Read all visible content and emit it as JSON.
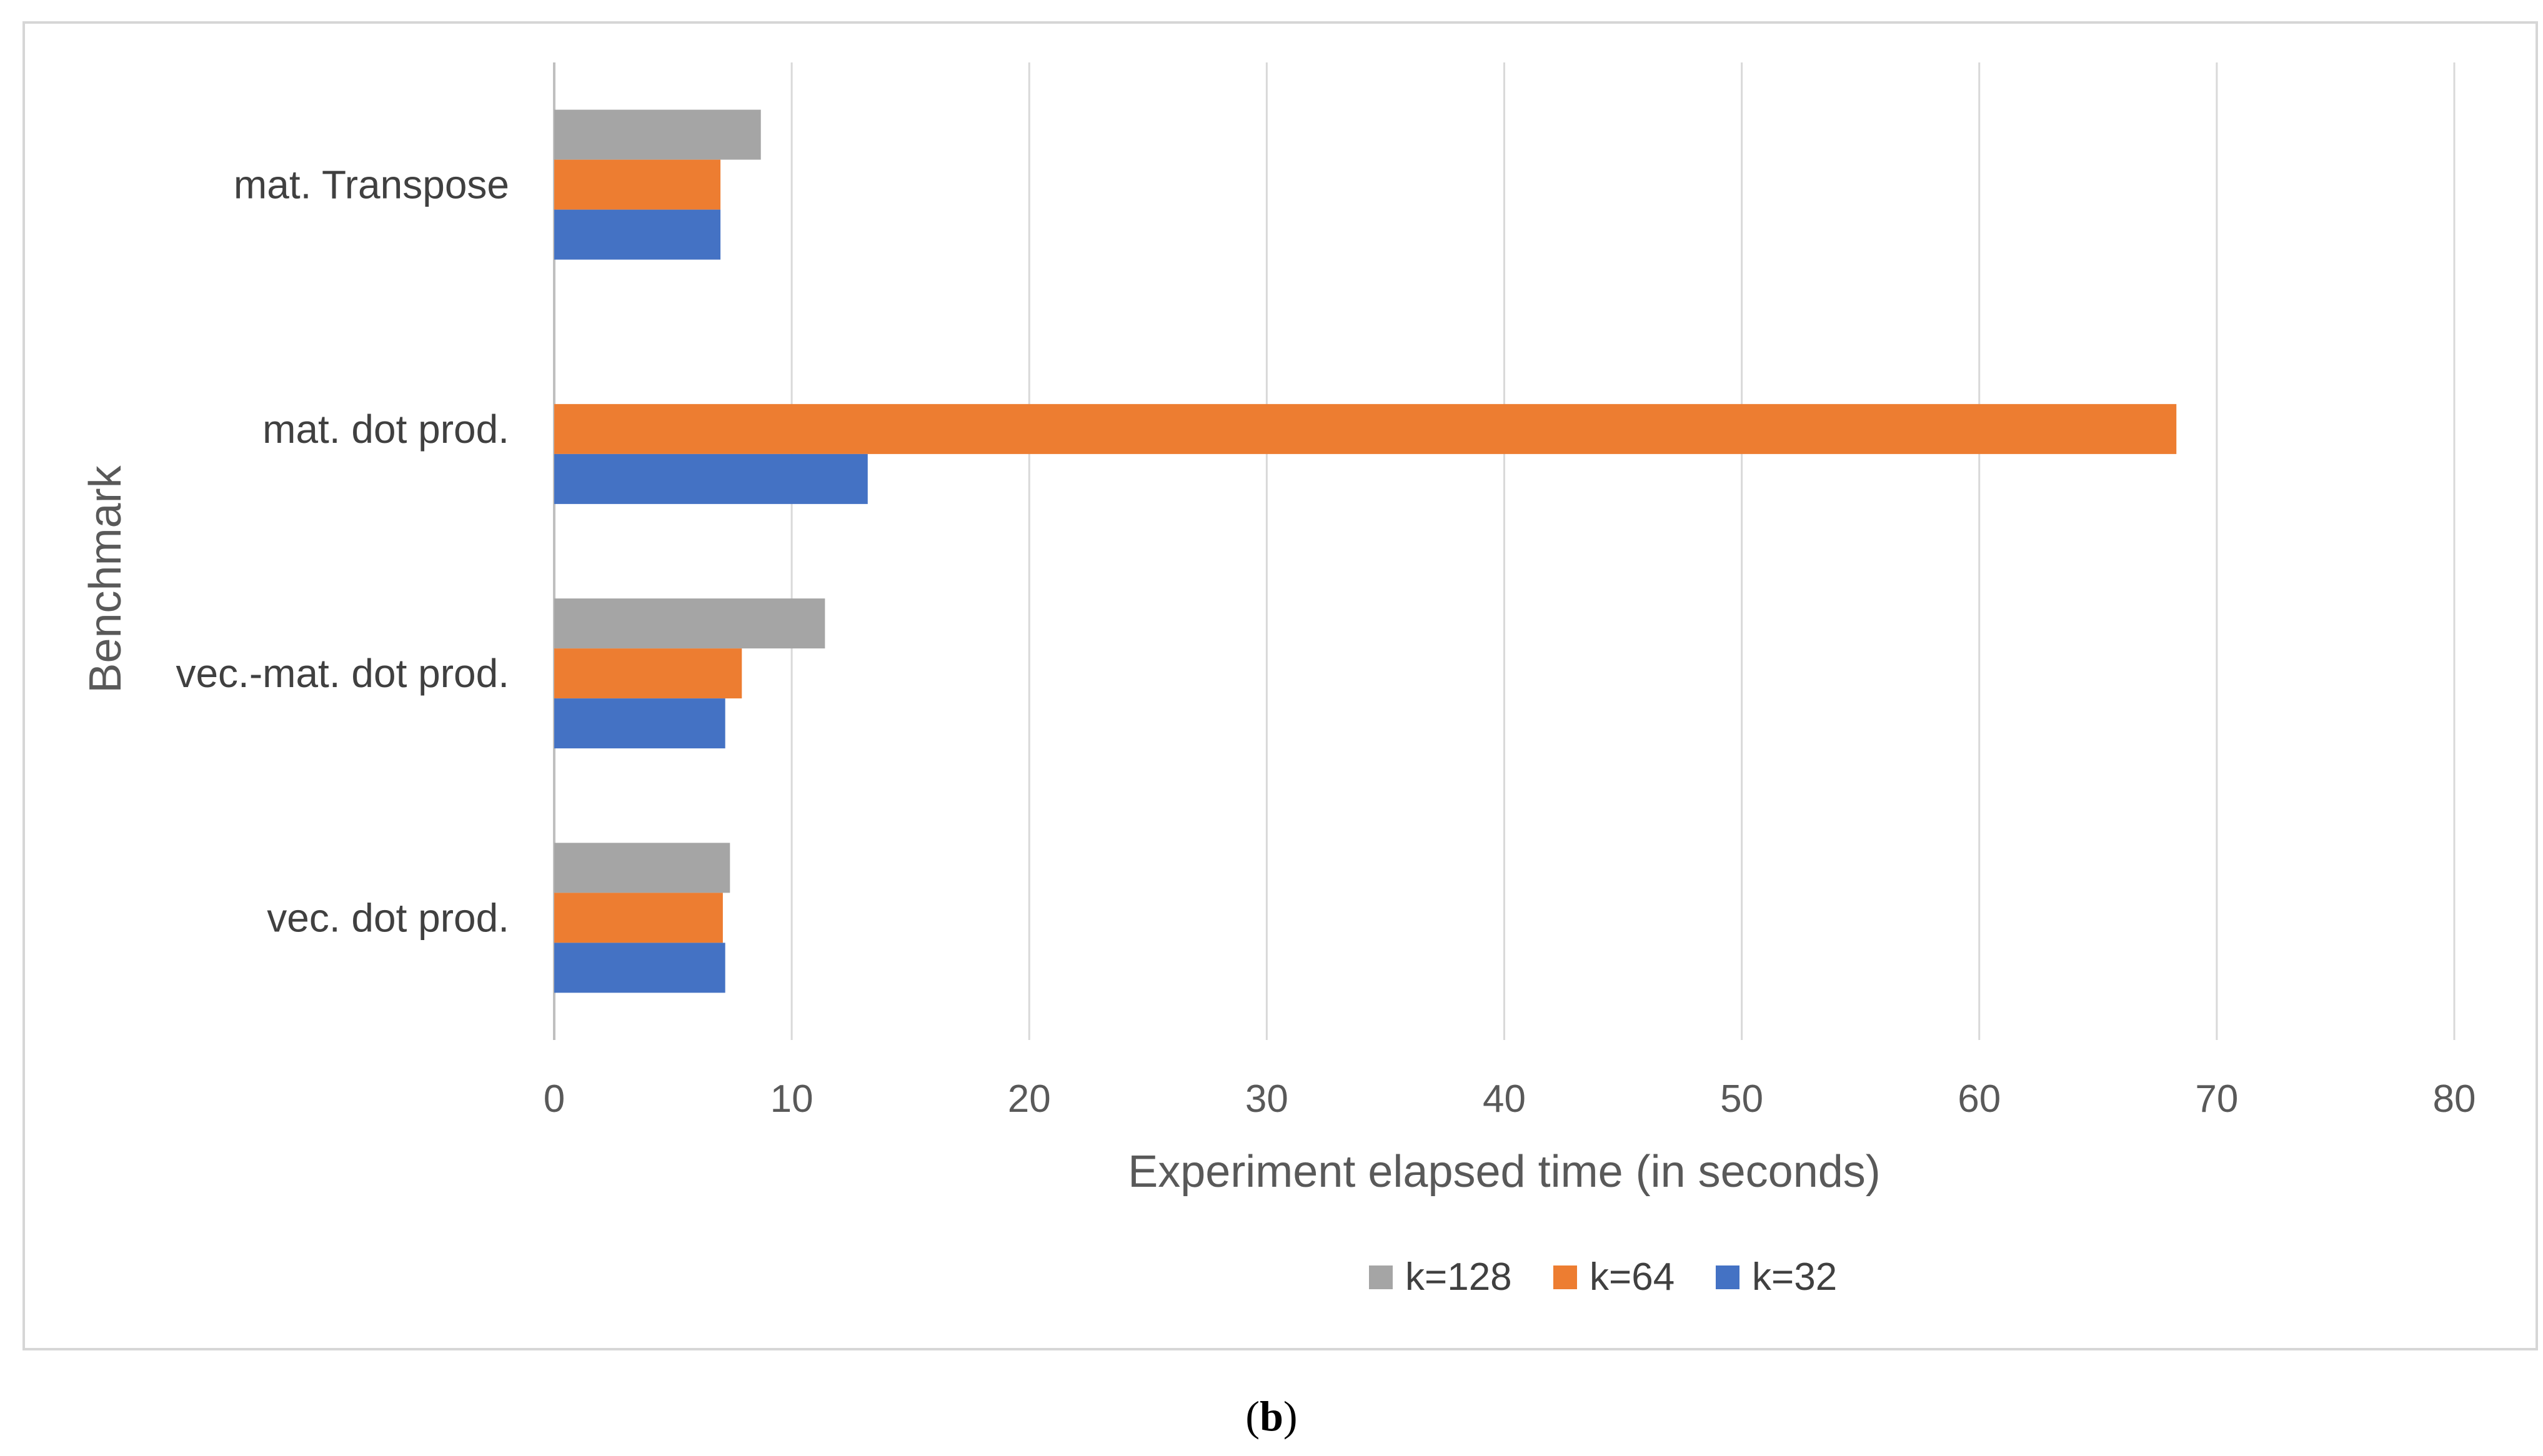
{
  "chart_data": {
    "type": "bar",
    "orientation": "horizontal",
    "categories": [
      "mat. Transpose",
      "mat. dot prod.",
      "vec.-mat. dot prod.",
      "vec. dot prod."
    ],
    "series": [
      {
        "name": "k=128",
        "color": "#a5a5a5",
        "values": [
          8.7,
          null,
          11.4,
          7.4
        ]
      },
      {
        "name": "k=64",
        "color": "#ed7d31",
        "values": [
          7.0,
          68.3,
          7.9,
          7.1
        ]
      },
      {
        "name": "k=32",
        "color": "#4472c4",
        "values": [
          7.0,
          13.2,
          7.2,
          7.2
        ]
      }
    ],
    "xlabel": "Experiment elapsed time (in seconds)",
    "ylabel": "Benchmark",
    "xlim": [
      0,
      80
    ],
    "xticks": [
      "0",
      "10",
      "20",
      "30",
      "40",
      "50",
      "60",
      "70",
      "80"
    ],
    "grid": "vertical",
    "legend_position": "bottom"
  },
  "caption": {
    "open": "(",
    "label": "b",
    "close": ")"
  }
}
